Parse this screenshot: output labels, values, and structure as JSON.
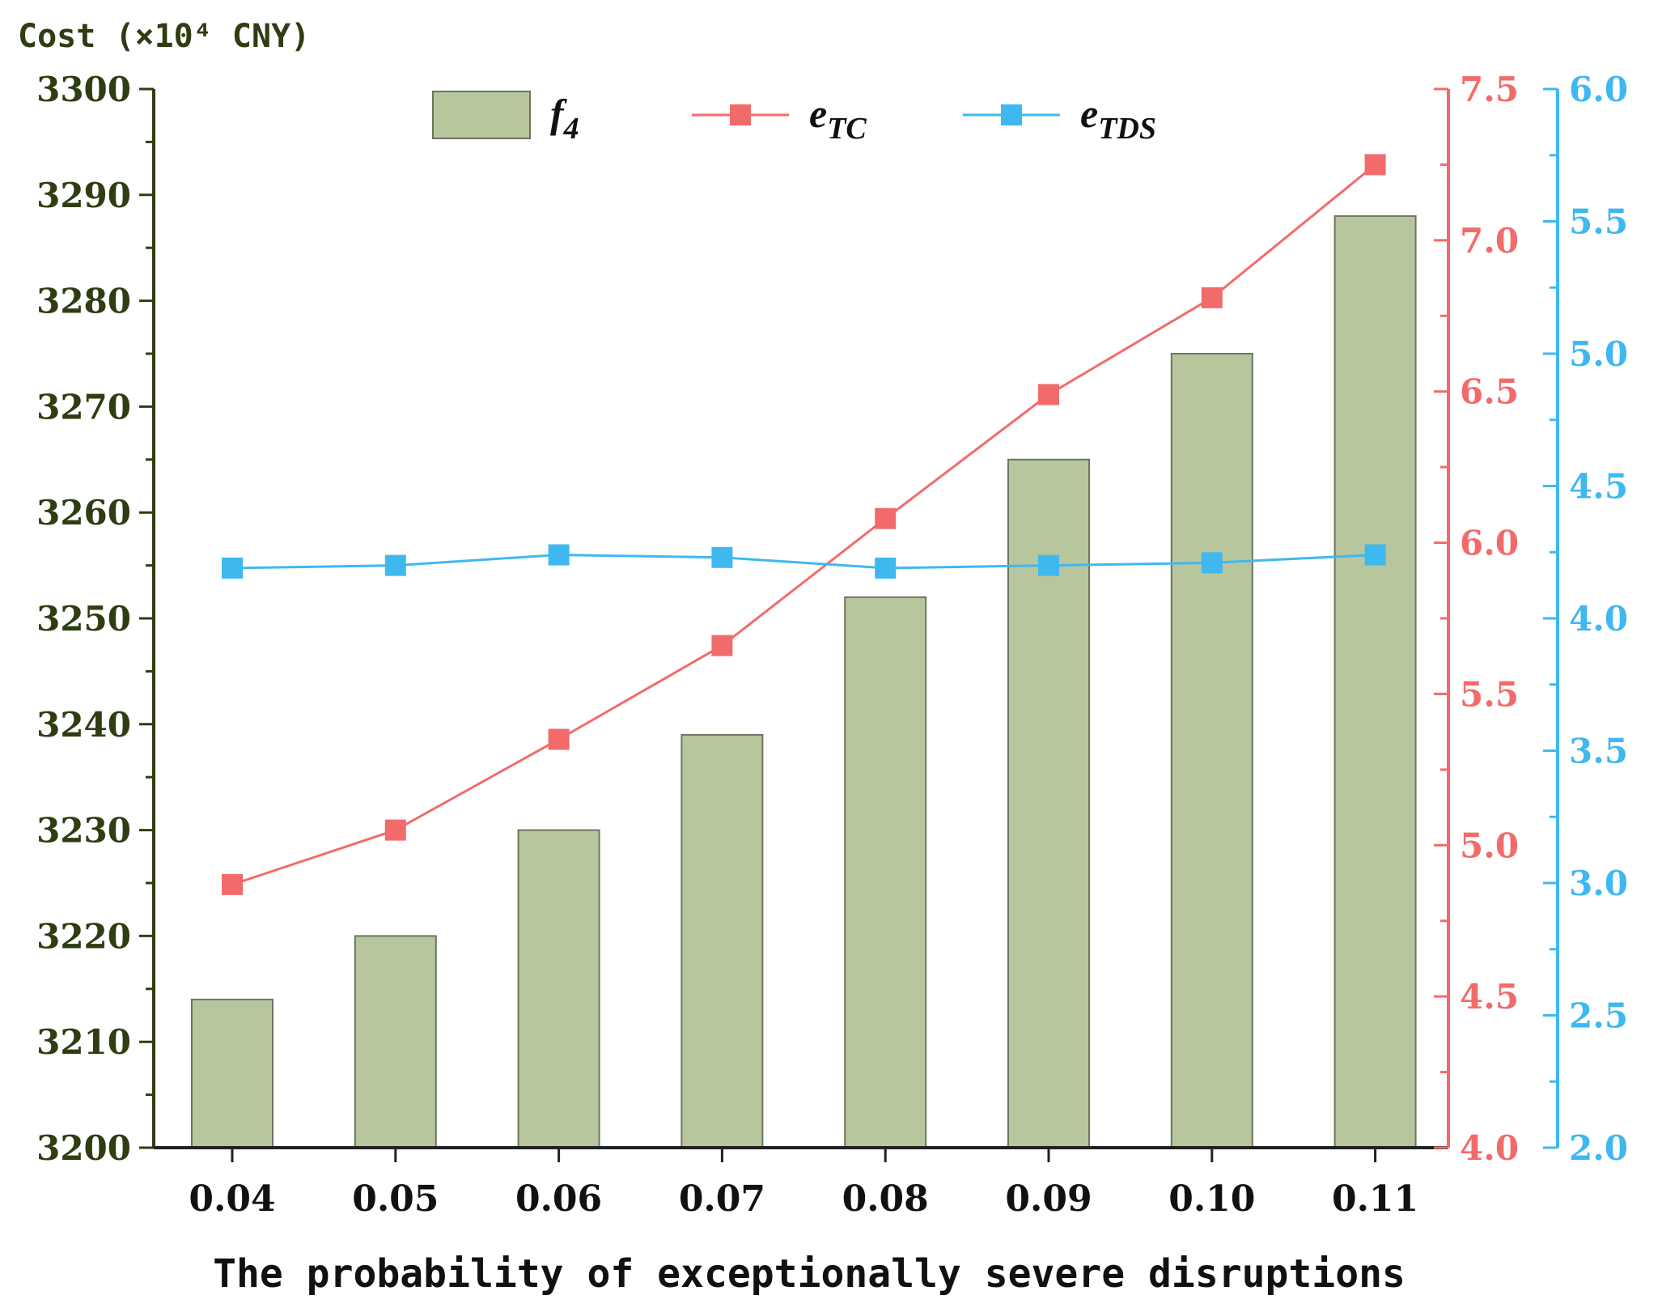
{
  "chart_data": {
    "type": "bar",
    "title": "",
    "y_axis_title": "Cost (×10⁴ CNY)",
    "xlabel": "The probability of exceptionally severe disruptions",
    "categories": [
      "0.04",
      "0.05",
      "0.06",
      "0.07",
      "0.08",
      "0.09",
      "0.10",
      "0.11"
    ],
    "ylim": [
      3200,
      3300
    ],
    "y_ticks": [
      "3200",
      "3210",
      "3220",
      "3230",
      "3240",
      "3250",
      "3260",
      "3270",
      "3280",
      "3290",
      "3300"
    ],
    "y2lim": [
      4.0,
      7.5
    ],
    "y2_ticks": [
      "4.0",
      "4.5",
      "5.0",
      "5.5",
      "6.0",
      "6.5",
      "7.0",
      "7.5"
    ],
    "y3lim": [
      2.0,
      6.0
    ],
    "y3_ticks": [
      "2.0",
      "2.5",
      "3.0",
      "3.5",
      "4.0",
      "4.5",
      "5.0",
      "5.5",
      "6.0"
    ],
    "series": [
      {
        "name": "f4",
        "label_main": "f",
        "label_sub": "4",
        "kind": "bar",
        "axis": "left",
        "color": "#b7c69c",
        "values": [
          3214,
          3220,
          3230,
          3239,
          3252,
          3265,
          3275,
          3288
        ]
      },
      {
        "name": "eTC",
        "label_main": "e",
        "label_sub": "TC",
        "kind": "line",
        "axis": "right1",
        "color": "#f26b6b",
        "values": [
          4.87,
          5.05,
          5.35,
          5.66,
          6.08,
          6.49,
          6.81,
          7.25
        ]
      },
      {
        "name": "eTDS",
        "label_main": "e",
        "label_sub": "TDS",
        "kind": "line",
        "axis": "right2",
        "color": "#3fb8f0",
        "values": [
          4.19,
          4.2,
          4.24,
          4.23,
          4.19,
          4.2,
          4.21,
          4.24
        ]
      }
    ],
    "legend_position": "top",
    "grid": false
  },
  "colors": {
    "left_axis": "#2e3d12",
    "right_axis_1": "#f26b6b",
    "right_axis_2": "#3fb8f0",
    "bar_fill": "#b7c69c",
    "bar_stroke": "#6c7560"
  }
}
